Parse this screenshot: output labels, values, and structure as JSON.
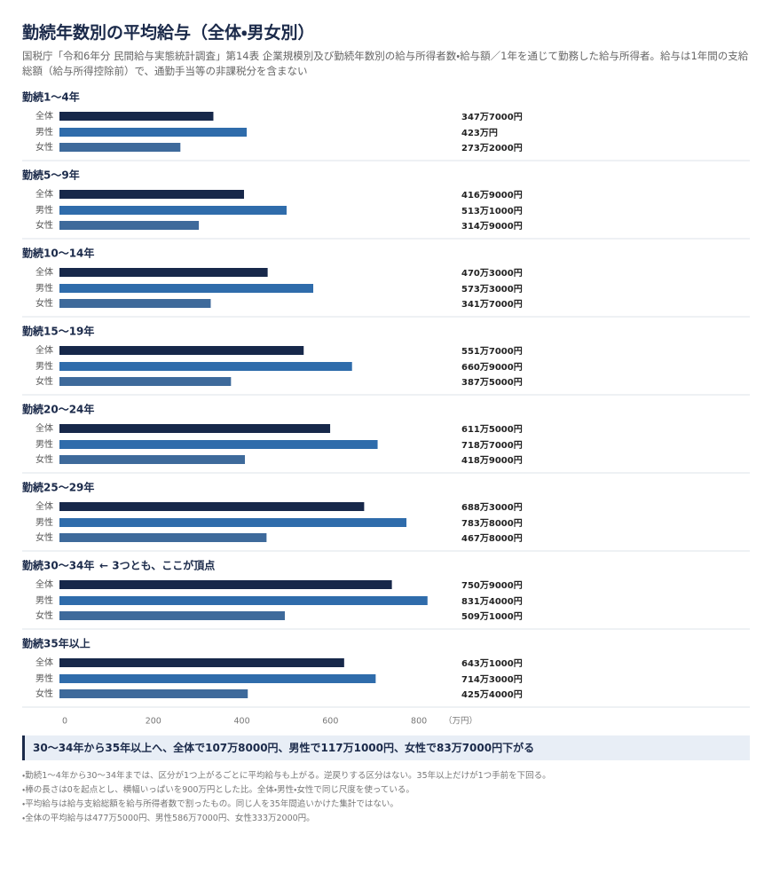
{
  "chart_data": {
    "type": "bar",
    "orientation": "horizontal",
    "title": "勤続年数別の平均給与（全体・男女別）",
    "subtitle": "国税庁「令和6年分 民間給与実態統計調査」第14表 企業規模別及び勤続年数別の給与所得者数・給与額／1年を通じて勤務した給与所得者。給与は1年間の支給総額（給与所得控除前）で、通勤手当等の非課税分を含まない",
    "categories": [
      "勤続1〜4年",
      "勤続5〜9年",
      "勤続10〜14年",
      "勤続15〜19年",
      "勤続20〜24年",
      "勤続25〜29年",
      "勤続30〜34年",
      "勤続35年以上"
    ],
    "series": [
      {
        "name": "全体",
        "color": "#17284a",
        "values": [
          347.7,
          416.9,
          470.3,
          551.7,
          611.5,
          688.3,
          750.9,
          643.1
        ],
        "value_labels": [
          "347万7000円",
          "416万9000円",
          "470万3000円",
          "551万7000円",
          "611万5000円",
          "688万3000円",
          "750万9000円",
          "643万1000円"
        ]
      },
      {
        "name": "男性",
        "color": "#2f6cab",
        "values": [
          423,
          513.1,
          573.3,
          660.9,
          718.7,
          783.8,
          831.4,
          714.3
        ],
        "value_labels": [
          "423万円",
          "513万1000円",
          "573万3000円",
          "660万9000円",
          "718万7000円",
          "783万8000円",
          "831万4000円",
          "714万3000円"
        ]
      },
      {
        "name": "女性",
        "color": "#3e6a9b",
        "values": [
          273.2,
          314.9,
          341.7,
          387.5,
          418.9,
          467.8,
          509.1,
          425.4
        ],
        "value_labels": [
          "273万2000円",
          "314万9000円",
          "341万7000円",
          "387万5000円",
          "418万9000円",
          "467万8000円",
          "509万1000円",
          "425万4000円"
        ]
      }
    ],
    "xlim": [
      0,
      900
    ],
    "xticks": [
      0,
      200,
      400,
      600,
      800
    ],
    "x_unit": "（万円）",
    "annotations": [
      {
        "category": "勤続30〜34年",
        "text": "← 3つとも、ここが頂点"
      }
    ]
  },
  "summary": "30〜34年から35年以上へ、全体で107万8000円、男性で117万1000円、女性で83万7000円下がる",
  "notes": [
    "・勤続1〜4年から30〜34年までは、区分が1つ上がるごとに平均給与も上がる。逆戻りする区分はない。35年以上だけが1つ手前を下回る。",
    "・棒の長さは0を起点とし、横幅いっぱいを900万円とした比。全体・男性・女性で同じ尺度を使っている。",
    "・平均給与は給与支給総額を給与所得者数で割ったもの。同じ人を35年間追いかけた集計ではない。",
    "・全体の平均給与は477万5000円、男性586万7000円、女性333万2000円。"
  ]
}
